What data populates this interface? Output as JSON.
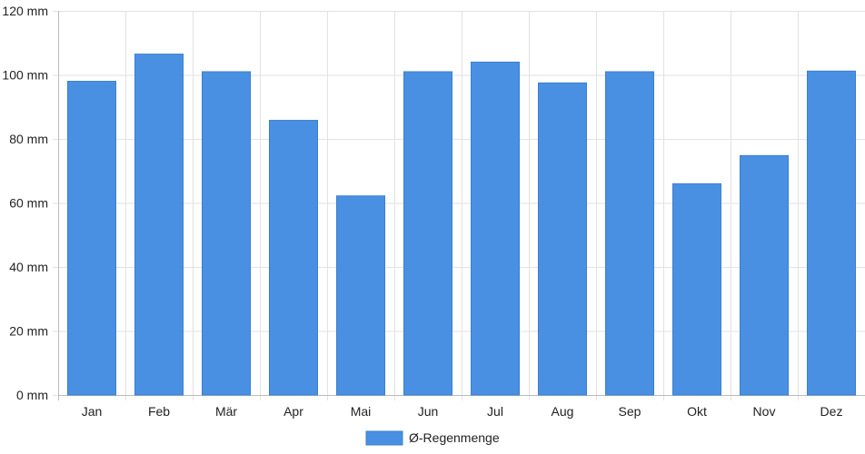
{
  "chart_data": {
    "type": "bar",
    "categories": [
      "Jan",
      "Feb",
      "Mär",
      "Apr",
      "Mai",
      "Jun",
      "Jul",
      "Aug",
      "Sep",
      "Okt",
      "Nov",
      "Dez"
    ],
    "series": [
      {
        "name": "Ø-Regenmenge",
        "values": [
          98,
          106.5,
          101,
          85.8,
          62.2,
          101,
          104,
          97.5,
          101,
          66,
          74.8,
          101.2
        ]
      }
    ],
    "ylim": [
      0,
      120
    ],
    "yticks": [
      0,
      20,
      40,
      60,
      80,
      100,
      120
    ],
    "y_unit": "mm",
    "grid": true,
    "legend_position": "bottom",
    "colors": {
      "bar": "#4a90e2",
      "bar_edge": "#3a7fd0",
      "grid": "#e2e2e2",
      "axis": "#bbbbbb"
    }
  }
}
